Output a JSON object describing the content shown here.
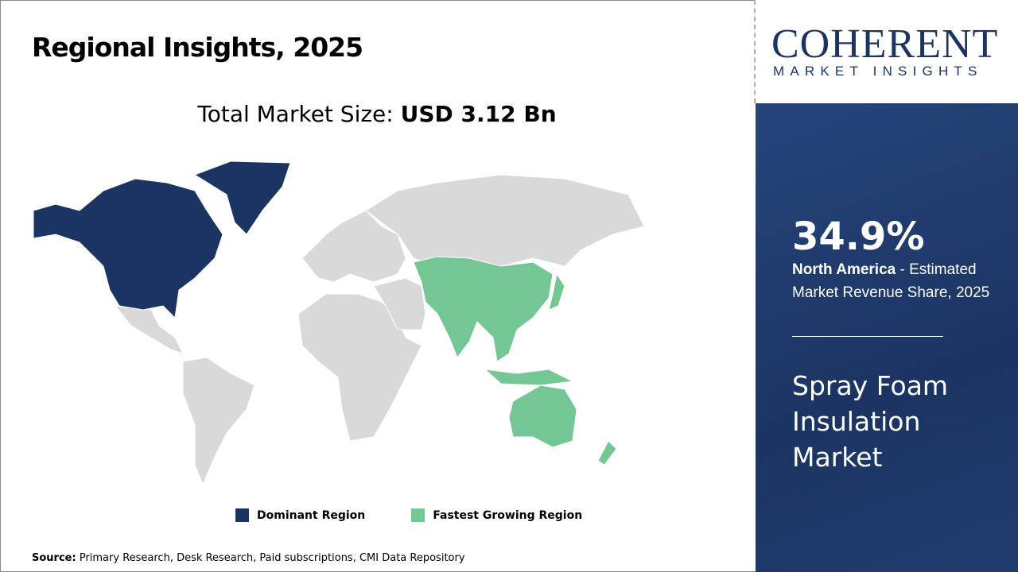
{
  "header": {
    "title": "Regional Insights, 2025"
  },
  "market_size": {
    "label": "Total Market Size: ",
    "value": "USD 3.12 Bn"
  },
  "map": {
    "dominant_region": "North America",
    "fastest_growing_region": "Asia Pacific",
    "colors": {
      "dominant": "#1b3462",
      "fastest": "#74c794",
      "other": "#d9d9d9"
    }
  },
  "legend": [
    {
      "label": "Dominant Region",
      "color": "#1b3462"
    },
    {
      "label": "Fastest Growing Region",
      "color": "#74c794"
    }
  ],
  "source": {
    "label": "Source:",
    "text": " Primary Research, Desk Research, Paid subscriptions, CMI Data Repository"
  },
  "logo": {
    "brand": "COHERENT",
    "tagline": "MARKET INSIGHTS"
  },
  "stat": {
    "value": "34.9%",
    "region": "North America",
    "text": " - Estimated Market Revenue Share, 2025"
  },
  "market_name": "Spray Foam Insulation Market"
}
